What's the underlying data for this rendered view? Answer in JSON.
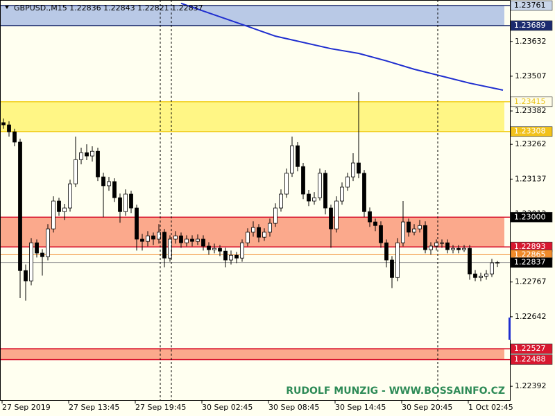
{
  "chart_data": {
    "type": "candlestick",
    "title": "GBPUSD.,M15  1.22836 1.22843 1.22821 1.22837",
    "watermark": "RUDOLF MUNZIG - WWW.BOSSAINFO.CZ",
    "categories": [
      "27 Sep 2019",
      null,
      null,
      null,
      null,
      null,
      null,
      null,
      null,
      null,
      null,
      null,
      "27 Sep 13:45",
      null,
      null,
      null,
      null,
      null,
      null,
      null,
      null,
      null,
      null,
      null,
      "27 Sep 19:45",
      null,
      null,
      null,
      null,
      null,
      null,
      null,
      null,
      null,
      null,
      null,
      "30 Sep 02:45",
      null,
      null,
      null,
      null,
      null,
      null,
      null,
      null,
      null,
      null,
      null,
      "30 Sep 08:45",
      null,
      null,
      null,
      null,
      null,
      null,
      null,
      null,
      null,
      null,
      null,
      "30 Sep 14:45",
      null,
      null,
      null,
      null,
      null,
      null,
      null,
      null,
      null,
      null,
      null,
      "30 Sep 20:45",
      null,
      null,
      null,
      null,
      null,
      null,
      null,
      null,
      null,
      null,
      null,
      "1 Oct 02:45",
      null,
      null,
      null,
      null,
      null
    ],
    "open": [
      1.2334,
      1.23332,
      1.23307,
      1.2327,
      1.22808,
      1.22771,
      1.22908,
      1.22871,
      1.22858,
      1.22958,
      1.23058,
      1.2302,
      1.23033,
      1.2312,
      1.23207,
      1.23232,
      1.2322,
      1.23237,
      1.23145,
      1.23113,
      1.23128,
      1.2307,
      1.2302,
      1.23083,
      1.23033,
      1.22921,
      1.22913,
      1.22933,
      1.22921,
      1.22946,
      1.22853,
      1.22921,
      1.22933,
      1.22908,
      1.22921,
      1.22913,
      1.22921,
      1.22896,
      1.22883,
      1.22888,
      1.22878,
      1.22846,
      1.22863,
      1.22853,
      1.22908,
      1.22946,
      1.22963,
      1.22928,
      1.22946,
      1.22978,
      1.23033,
      1.23083,
      1.23158,
      1.23257,
      1.23182,
      1.23083,
      1.23058,
      1.2307,
      1.23158,
      1.23033,
      1.22958,
      1.23058,
      1.23108,
      1.23145,
      1.23195,
      1.23158,
      1.2302,
      1.22983,
      1.2297,
      1.22908,
      1.22846,
      1.22783,
      1.22908,
      1.22983,
      1.22946,
      1.22958,
      1.2297,
      1.22883,
      1.22896,
      1.22908,
      1.22908,
      1.22883,
      1.22888,
      1.22883,
      1.22888,
      1.22796,
      1.22783,
      1.22788,
      1.22796,
      1.22836
    ],
    "high": [
      1.23355,
      1.23345,
      1.23318,
      1.23282,
      1.2283,
      1.22925,
      1.2292,
      1.22885,
      1.22975,
      1.23075,
      1.2307,
      1.23048,
      1.23135,
      1.2329,
      1.2325,
      1.23262,
      1.23255,
      1.2325,
      1.2316,
      1.23145,
      1.2314,
      1.23085,
      1.231,
      1.23095,
      1.23045,
      1.2294,
      1.2295,
      1.22945,
      1.22975,
      1.22958,
      1.22935,
      1.2295,
      1.22945,
      1.22935,
      1.22935,
      1.22938,
      1.22935,
      1.2291,
      1.22905,
      1.229,
      1.2289,
      1.2288,
      1.22875,
      1.2292,
      1.2296,
      1.22985,
      1.22975,
      1.2296,
      1.22995,
      1.2305,
      1.231,
      1.23175,
      1.2329,
      1.2327,
      1.23195,
      1.23098,
      1.2309,
      1.23175,
      1.2317,
      1.23045,
      1.23075,
      1.23125,
      1.2316,
      1.2323,
      1.23449,
      1.2317,
      1.23035,
      1.22995,
      1.22985,
      1.2292,
      1.2286,
      1.22925,
      1.23058,
      1.22995,
      1.22975,
      1.2299,
      1.22985,
      1.2291,
      1.2292,
      1.2292,
      1.2292,
      1.229,
      1.229,
      1.229,
      1.229,
      1.2281,
      1.228,
      1.2281,
      1.2285,
      1.22843
    ],
    "low": [
      1.23318,
      1.2329,
      1.23255,
      1.22709,
      1.227,
      1.22755,
      1.22855,
      1.2279,
      1.22845,
      1.22945,
      1.23005,
      1.2299,
      1.2302,
      1.23108,
      1.2319,
      1.23205,
      1.232,
      1.2313,
      1.23,
      1.23095,
      1.23055,
      1.2298,
      1.23005,
      1.23015,
      1.2288,
      1.2288,
      1.22895,
      1.229,
      1.22905,
      1.2282,
      1.2284,
      1.22905,
      1.2289,
      1.22895,
      1.22895,
      1.229,
      1.2288,
      1.22865,
      1.2287,
      1.2286,
      1.2282,
      1.2283,
      1.22835,
      1.2284,
      1.22895,
      1.2293,
      1.2291,
      1.22915,
      1.2293,
      1.22965,
      1.2302,
      1.2307,
      1.23145,
      1.23165,
      1.23065,
      1.2304,
      1.23045,
      1.2306,
      1.2301,
      1.2289,
      1.22945,
      1.23045,
      1.23095,
      1.2313,
      1.2314,
      1.23,
      1.22965,
      1.2295,
      1.2289,
      1.2282,
      1.22745,
      1.2277,
      1.22895,
      1.2293,
      1.22935,
      1.22945,
      1.2287,
      1.22865,
      1.2288,
      1.2289,
      1.2287,
      1.2287,
      1.2287,
      1.22875,
      1.22775,
      1.2277,
      1.2277,
      1.22775,
      1.22785,
      1.22821
    ],
    "close": [
      1.23332,
      1.23307,
      1.2327,
      1.22808,
      1.22771,
      1.22908,
      1.22871,
      1.22858,
      1.22958,
      1.23058,
      1.2302,
      1.23033,
      1.2312,
      1.23207,
      1.23232,
      1.2322,
      1.23237,
      1.23145,
      1.23113,
      1.23128,
      1.2307,
      1.2302,
      1.23083,
      1.23033,
      1.22921,
      1.22913,
      1.22933,
      1.22921,
      1.22946,
      1.22853,
      1.22921,
      1.22933,
      1.22908,
      1.22921,
      1.22913,
      1.22921,
      1.22896,
      1.22883,
      1.22888,
      1.22878,
      1.22846,
      1.22863,
      1.22853,
      1.22908,
      1.22946,
      1.22963,
      1.22928,
      1.22946,
      1.22978,
      1.23033,
      1.23083,
      1.23158,
      1.23257,
      1.23182,
      1.23083,
      1.23058,
      1.2307,
      1.23158,
      1.23033,
      1.22958,
      1.23058,
      1.23108,
      1.23145,
      1.23195,
      1.23158,
      1.2302,
      1.22983,
      1.2297,
      1.22908,
      1.22846,
      1.22783,
      1.22908,
      1.22983,
      1.22946,
      1.22958,
      1.2297,
      1.22883,
      1.22896,
      1.22908,
      1.22908,
      1.22883,
      1.22888,
      1.22883,
      1.22888,
      1.22796,
      1.22783,
      1.22788,
      1.22796,
      1.22836,
      1.22837
    ],
    "moving_average": {
      "color": "#1f2ecf",
      "x": [
        32,
        44,
        49,
        59,
        64,
        69,
        74,
        79,
        84,
        90
      ],
      "values": [
        1.23769,
        1.23686,
        1.23651,
        1.23606,
        1.23589,
        1.23562,
        1.23532,
        1.23507,
        1.23482,
        1.23457
      ]
    },
    "ylim": [
      1.2234,
      1.23781
    ],
    "yticks": [
      1.23632,
      1.23507,
      1.23382,
      1.23262,
      1.23137,
      1.23012,
      1.22767,
      1.22642,
      1.22392
    ],
    "zones": [
      {
        "from": 1.23761,
        "to": 1.23689,
        "color": "#b9c9e6",
        "border": "#1b2a6e"
      },
      {
        "from": 1.23415,
        "to": 1.23308,
        "color": "#fff685",
        "border": "#f2cf1f"
      },
      {
        "from": {
          "value": 1.23,
          "label": "1.23000"
        },
        "to": 1.22893,
        "color": "#fba98c",
        "border": "#d8172f"
      },
      {
        "from": 1.22527,
        "to": 1.22488,
        "color": "#fba98c",
        "border": "#d8172f"
      }
    ],
    "lines": [
      {
        "value": 1.22865,
        "color": "#f08a2a"
      },
      {
        "value": 1.22837,
        "color": "#9a9a9a"
      }
    ],
    "price_labels": [
      {
        "value": 1.23761,
        "bg": "#c9d6ea",
        "fg": "#000000"
      },
      {
        "value": 1.23689,
        "bg": "#1b2a6e",
        "fg": "#ffffff"
      },
      {
        "value": 1.23415,
        "bg": "#fffde8",
        "fg": "#e8c21a"
      },
      {
        "value": 1.23308,
        "bg": "#f2c21a",
        "fg": "#ffffff"
      },
      {
        "value": 1.23,
        "label": "1.23000",
        "bg": "#000000",
        "fg": "#ffffff"
      },
      {
        "value": 1.22893,
        "bg": "#d8172f",
        "fg": "#ffffff"
      },
      {
        "value": 1.22865,
        "bg": "#f08a2a",
        "fg": "#ffffff"
      },
      {
        "value": 1.22837,
        "bg": "#000000",
        "fg": "#ffffff"
      },
      {
        "value": 1.22527,
        "bg": "#d8172f",
        "fg": "#ffffff"
      },
      {
        "value": 1.22488,
        "bg": "#d8172f",
        "fg": "#ffffff"
      }
    ]
  }
}
